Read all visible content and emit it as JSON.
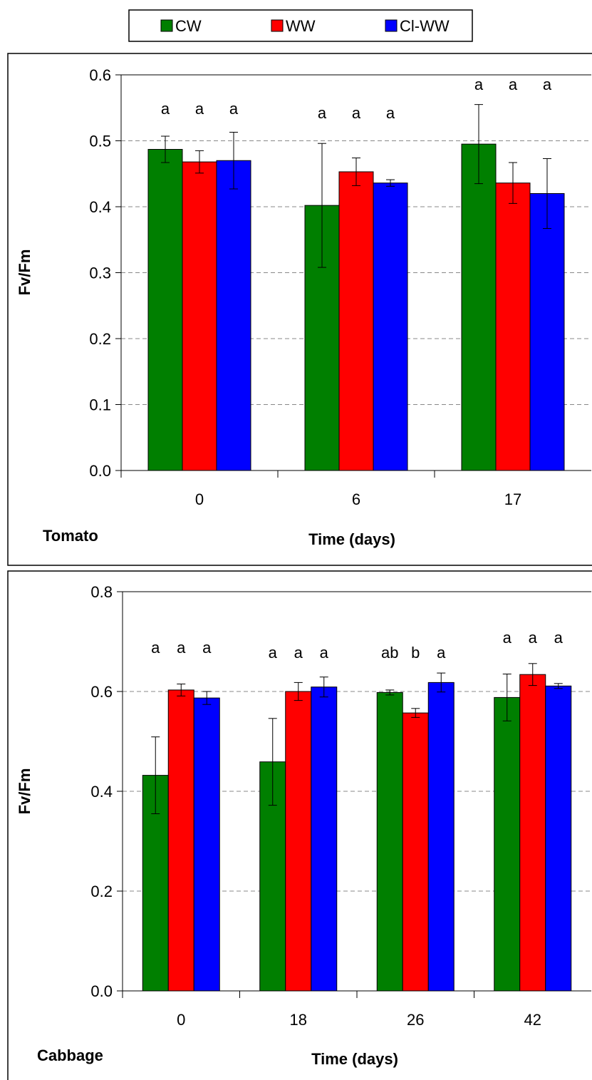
{
  "legend": [
    {
      "name": "CW",
      "color": "#007F00"
    },
    {
      "name": "WW",
      "color": "#FF0000"
    },
    {
      "name": "Cl-WW",
      "color": "#0000FF"
    }
  ],
  "chart_data": [
    {
      "type": "bar",
      "panel_label": "Tomato",
      "xlabel": "Time (days)",
      "ylabel": "Fv/Fm",
      "categories": [
        "0",
        "6",
        "17"
      ],
      "ylim": [
        0,
        0.6
      ],
      "yticks": [
        "0.0",
        "0.1",
        "0.2",
        "0.3",
        "0.4",
        "0.5",
        "0.6"
      ],
      "grid": true,
      "series": [
        {
          "name": "CW",
          "values": [
            0.487,
            0.402,
            0.495
          ],
          "errors": [
            0.02,
            0.094,
            0.06
          ],
          "labels": [
            "a",
            "a",
            "a"
          ]
        },
        {
          "name": "WW",
          "values": [
            0.468,
            0.453,
            0.436
          ],
          "errors": [
            0.017,
            0.021,
            0.031
          ],
          "labels": [
            "a",
            "a",
            "a"
          ]
        },
        {
          "name": "Cl-WW",
          "values": [
            0.47,
            0.436,
            0.42
          ],
          "errors": [
            0.043,
            0.005,
            0.053
          ],
          "labels": [
            "a",
            "a",
            "a"
          ]
        }
      ]
    },
    {
      "type": "bar",
      "panel_label": "Cabbage",
      "xlabel": "Time (days)",
      "ylabel": "Fv/Fm",
      "categories": [
        "0",
        "18",
        "26",
        "42"
      ],
      "ylim": [
        0,
        0.8
      ],
      "yticks": [
        "0.0",
        "0.2",
        "0.4",
        "0.6",
        "0.8"
      ],
      "grid": true,
      "series": [
        {
          "name": "CW",
          "values": [
            0.432,
            0.459,
            0.598,
            0.588
          ],
          "errors": [
            0.077,
            0.087,
            0.005,
            0.047
          ],
          "labels": [
            "a",
            "a",
            "ab",
            "a"
          ]
        },
        {
          "name": "WW",
          "values": [
            0.603,
            0.6,
            0.557,
            0.634
          ],
          "errors": [
            0.012,
            0.018,
            0.009,
            0.022
          ],
          "labels": [
            "a",
            "a",
            "b",
            "a"
          ]
        },
        {
          "name": "Cl-WW",
          "values": [
            0.587,
            0.609,
            0.618,
            0.611
          ],
          "errors": [
            0.013,
            0.02,
            0.019,
            0.005
          ],
          "labels": [
            "a",
            "a",
            "a",
            "a"
          ]
        }
      ]
    }
  ]
}
